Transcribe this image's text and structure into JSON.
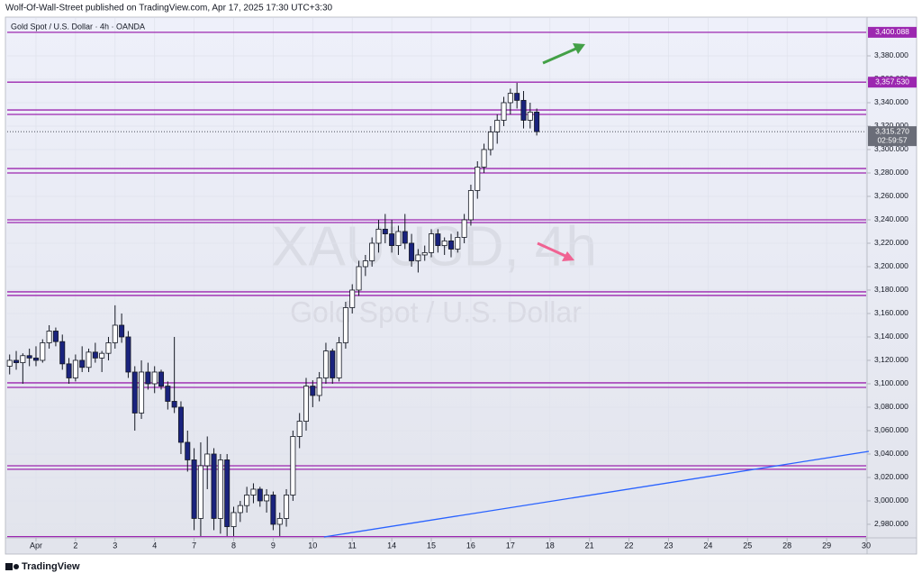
{
  "header": {
    "text": "Wolf-Of-Wall-Street published on TradingView.com, Apr 17, 2025 17:30 UTC+3:30"
  },
  "footer": {
    "brand": "TradingView"
  },
  "chart_data": {
    "type": "candlestick",
    "symbol_label": "Gold Spot / U.S. Dollar · 4h · OANDA",
    "watermark": [
      "XAUUSD, 4h",
      "Gold Spot / U.S. Dollar"
    ],
    "colors": {
      "up": "#ffffff",
      "down": "#1a237e",
      "wick": "#131722",
      "level": "#9c27b0",
      "trend": "#2962ff"
    },
    "xlim": [
      -4.37,
      126.0
    ],
    "ylim": [
      2969.2,
      3412.3
    ],
    "xticks": [
      {
        "value": 0,
        "label": "Apr"
      },
      {
        "value": 6,
        "label": "2"
      },
      {
        "value": 12,
        "label": "3"
      },
      {
        "value": 18,
        "label": "4"
      },
      {
        "value": 24,
        "label": "7"
      },
      {
        "value": 30,
        "label": "8"
      },
      {
        "value": 36,
        "label": "9"
      },
      {
        "value": 42,
        "label": "10"
      },
      {
        "value": 48,
        "label": "11"
      },
      {
        "value": 54,
        "label": "14"
      },
      {
        "value": 60,
        "label": "15"
      },
      {
        "value": 66,
        "label": "16"
      },
      {
        "value": 72,
        "label": "17"
      },
      {
        "value": 78,
        "label": "18"
      },
      {
        "value": 84,
        "label": "21"
      },
      {
        "value": 90,
        "label": "22"
      },
      {
        "value": 96,
        "label": "23"
      },
      {
        "value": 102,
        "label": "24"
      },
      {
        "value": 108,
        "label": "25"
      },
      {
        "value": 114,
        "label": "28"
      },
      {
        "value": 120,
        "label": "29"
      },
      {
        "value": 126,
        "label": "30"
      }
    ],
    "yticks": [
      {
        "value": 2980,
        "label": "2,980.000"
      },
      {
        "value": 3000,
        "label": "3,000.000"
      },
      {
        "value": 3020,
        "label": "3,020.000"
      },
      {
        "value": 3040,
        "label": "3,040.000"
      },
      {
        "value": 3060,
        "label": "3,060.000"
      },
      {
        "value": 3080,
        "label": "3,080.000"
      },
      {
        "value": 3100,
        "label": "3,100.000"
      },
      {
        "value": 3120,
        "label": "3,120.000"
      },
      {
        "value": 3140,
        "label": "3,140.000"
      },
      {
        "value": 3160,
        "label": "3,160.000"
      },
      {
        "value": 3180,
        "label": "3,180.000"
      },
      {
        "value": 3200,
        "label": "3,200.000"
      },
      {
        "value": 3220,
        "label": "3,220.000"
      },
      {
        "value": 3240,
        "label": "3,240.000"
      },
      {
        "value": 3260,
        "label": "3,260.000"
      },
      {
        "value": 3280,
        "label": "3,280.000"
      },
      {
        "value": 3300,
        "label": "3,300.000"
      },
      {
        "value": 3320,
        "label": "3,320.000"
      },
      {
        "value": 3340,
        "label": "3,340.000"
      },
      {
        "value": 3360,
        "label": "3,360.000"
      },
      {
        "value": 3380,
        "label": "3,380.000"
      }
    ],
    "grid": true,
    "x": [
      -4,
      -3,
      -2,
      -1,
      0,
      1,
      2,
      3,
      4,
      5,
      6,
      7,
      8,
      9,
      10,
      11,
      12,
      13,
      14,
      15,
      16,
      17,
      18,
      19,
      20,
      21,
      22,
      23,
      24,
      25,
      26,
      27,
      28,
      29,
      30,
      31,
      32,
      33,
      34,
      35,
      36,
      37,
      38,
      39,
      40,
      41,
      42,
      43,
      44,
      45,
      46,
      47,
      48,
      49,
      50,
      51,
      52,
      53,
      54,
      55,
      56,
      57,
      58,
      59,
      60,
      61,
      62,
      63,
      64,
      65,
      66,
      67,
      68,
      69,
      70,
      71,
      72,
      73,
      74,
      75,
      76
    ],
    "open": [
      3115,
      3120,
      3118,
      3124,
      3122,
      3120,
      3135,
      3145,
      3136,
      3117,
      3105,
      3120,
      3114,
      3127,
      3122,
      3126,
      3135,
      3150,
      3140,
      3110,
      3075,
      3110,
      3100,
      3110,
      3098,
      3085,
      3080,
      3050,
      3035,
      2985,
      3030,
      3040,
      2985,
      3035,
      2978,
      2990,
      2996,
      3005,
      3010,
      3000,
      3005,
      2980,
      2985,
      3005,
      3055,
      3068,
      3098,
      3090,
      3105,
      3128,
      3105,
      3135,
      3165,
      3180,
      3200,
      3205,
      3220,
      3232,
      3228,
      3218,
      3230,
      3220,
      3205,
      3210,
      3212,
      3228,
      3218,
      3222,
      3215,
      3225,
      3240,
      3265,
      3285,
      3300,
      3315,
      3325,
      3340,
      3348,
      3342,
      3325,
      3332
    ],
    "high": [
      3125,
      3128,
      3126,
      3130,
      3132,
      3138,
      3150,
      3148,
      3142,
      3122,
      3125,
      3132,
      3130,
      3135,
      3128,
      3140,
      3167,
      3160,
      3145,
      3115,
      3120,
      3118,
      3115,
      3112,
      3102,
      3140,
      3085,
      3060,
      3045,
      3050,
      3055,
      3045,
      3040,
      3040,
      2995,
      3000,
      3012,
      3015,
      3012,
      3010,
      3008,
      2990,
      3010,
      3060,
      3075,
      3105,
      3103,
      3110,
      3135,
      3130,
      3140,
      3170,
      3185,
      3205,
      3210,
      3225,
      3240,
      3245,
      3240,
      3235,
      3245,
      3228,
      3215,
      3218,
      3232,
      3232,
      3225,
      3228,
      3230,
      3245,
      3270,
      3290,
      3305,
      3320,
      3330,
      3345,
      3352,
      3357,
      3350,
      3340,
      3335
    ],
    "low": [
      3108,
      3112,
      3100,
      3115,
      3115,
      3118,
      3130,
      3132,
      3112,
      3100,
      3102,
      3110,
      3110,
      3118,
      3110,
      3120,
      3130,
      3135,
      3105,
      3060,
      3070,
      3095,
      3092,
      3095,
      3078,
      3075,
      3040,
      3025,
      2975,
      2970,
      3010,
      2975,
      2972,
      2970,
      2970,
      2982,
      2990,
      2998,
      2995,
      2990,
      2975,
      2970,
      2978,
      3000,
      3045,
      3060,
      3080,
      3085,
      3100,
      3100,
      3102,
      3130,
      3160,
      3175,
      3192,
      3200,
      3212,
      3220,
      3212,
      3210,
      3215,
      3200,
      3195,
      3205,
      3208,
      3212,
      3210,
      3208,
      3212,
      3220,
      3235,
      3258,
      3280,
      3295,
      3305,
      3320,
      3330,
      3335,
      3318,
      3318,
      3312
    ],
    "close": [
      3120,
      3118,
      3124,
      3122,
      3120,
      3135,
      3145,
      3136,
      3117,
      3105,
      3120,
      3114,
      3127,
      3122,
      3126,
      3135,
      3150,
      3140,
      3110,
      3075,
      3110,
      3100,
      3110,
      3098,
      3085,
      3080,
      3050,
      3035,
      2985,
      3030,
      3040,
      2985,
      3035,
      2978,
      2990,
      2996,
      3005,
      3010,
      3000,
      3005,
      2980,
      2985,
      3005,
      3055,
      3068,
      3098,
      3090,
      3105,
      3128,
      3105,
      3135,
      3165,
      3180,
      3200,
      3205,
      3220,
      3232,
      3228,
      3218,
      3230,
      3220,
      3205,
      3210,
      3212,
      3228,
      3218,
      3222,
      3215,
      3225,
      3240,
      3265,
      3285,
      3300,
      3315,
      3325,
      3340,
      3348,
      3342,
      3325,
      3332,
      3315.27
    ],
    "price_levels": [
      {
        "value": 3400.088,
        "label": "3,400.088"
      },
      {
        "value": 3357.53,
        "label": "3,357.530"
      }
    ],
    "zones": [
      3333.8,
      3330,
      3283.8,
      3280,
      3240,
      3237.7,
      3178.5,
      3175.4,
      3100.8,
      3096.9,
      3030,
      3027,
      2969.5
    ],
    "trendline": {
      "x": [
        43.7,
        126.4
      ],
      "y": [
        2969.2,
        3042.3
      ]
    },
    "last_price": {
      "value": 3315.27,
      "label": "3,315.270",
      "countdown": "02:59:57"
    }
  }
}
